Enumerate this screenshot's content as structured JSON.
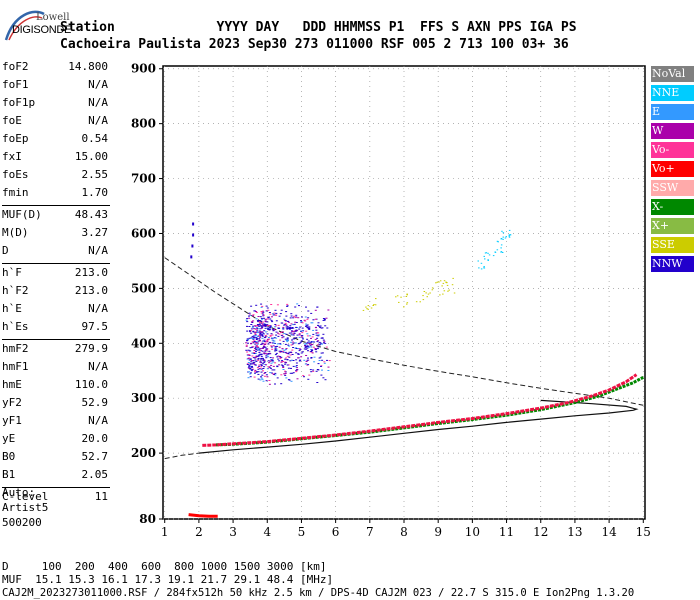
{
  "logo": {
    "top": "Lowell",
    "bottom": "DIGISONDE"
  },
  "header": {
    "line1": "Station             YYYY DAY   DDD HHMMSS P1  FFS S AXN PPS IGA PS",
    "line2": "Cachoeira Paulista 2023 Sep30 273 011000 RSF 005 2 713 100 03+ 36"
  },
  "params": [
    {
      "k": "foF2",
      "v": "14.800"
    },
    {
      "k": "foF1",
      "v": "N/A"
    },
    {
      "k": "foF1p",
      "v": "N/A"
    },
    {
      "k": "foE",
      "v": "N/A"
    },
    {
      "k": "foEp",
      "v": "0.54"
    },
    {
      "k": "fxI",
      "v": "15.00"
    },
    {
      "k": "foEs",
      "v": "2.55"
    },
    {
      "k": "fmin",
      "v": "1.70"
    },
    {
      "k": "MUF(D)",
      "v": "48.43"
    },
    {
      "k": "M(D)",
      "v": "3.27"
    },
    {
      "k": "D",
      "v": "N/A"
    },
    {
      "k": "h`F",
      "v": "213.0"
    },
    {
      "k": "h`F2",
      "v": "213.0"
    },
    {
      "k": "h`E",
      "v": "N/A"
    },
    {
      "k": "h`Es",
      "v": "97.5"
    },
    {
      "k": "hmF2",
      "v": "279.9"
    },
    {
      "k": "hmF1",
      "v": "N/A"
    },
    {
      "k": "hmE",
      "v": "110.0"
    },
    {
      "k": "yF2",
      "v": "52.9"
    },
    {
      "k": "yF1",
      "v": "N/A"
    },
    {
      "k": "yE",
      "v": "20.0"
    },
    {
      "k": "B0",
      "v": "52.7"
    },
    {
      "k": "B1",
      "v": "2.05"
    },
    {
      "k": "C-level",
      "v": "11"
    }
  ],
  "auto": {
    "line1": "Auto:",
    "line2": "Artist5",
    "line3": "500200"
  },
  "legend": [
    {
      "label": "NoVal",
      "color": "#808080"
    },
    {
      "label": "NNE",
      "color": "#00ccff"
    },
    {
      "label": "E",
      "color": "#3399ff"
    },
    {
      "label": "W",
      "color": "#aa00aa"
    },
    {
      "label": "Vo-",
      "color": "#ff3399"
    },
    {
      "label": "Vo+",
      "color": "#ff0000"
    },
    {
      "label": "SSW",
      "color": "#ffaaaa"
    },
    {
      "label": "X-",
      "color": "#008800"
    },
    {
      "label": "X+",
      "color": "#88bb44"
    },
    {
      "label": "SSE",
      "color": "#cccc00"
    },
    {
      "label": "NNW",
      "color": "#2200cc"
    }
  ],
  "footer": {
    "line1": "D     100  200  400  600  800 1000 1500 3000 [km]",
    "line2": "MUF  15.1 15.3 16.1 17.3 19.1 21.7 29.1 48.4 [MHz]",
    "line3": "CAJ2M_2023273011000.RSF / 284fx512h 50 kHz 2.5 km / DPS-4D CAJ2M 023 / 22.7 S 315.0 E Ion2Png 1.3.20"
  },
  "chart_data": {
    "type": "scatter",
    "xlabel": "",
    "ylabel": "",
    "xlim": [
      0.95,
      15.05
    ],
    "ylim": [
      80,
      905
    ],
    "xticks": [
      1,
      2,
      3,
      4,
      5,
      6,
      7,
      8,
      9,
      10,
      11,
      12,
      13,
      14,
      15
    ],
    "yticks": [
      80,
      200,
      300,
      400,
      500,
      600,
      700,
      800,
      900
    ],
    "profile_curve": [
      [
        2.0,
        200
      ],
      [
        3,
        206
      ],
      [
        4,
        211
      ],
      [
        5,
        216
      ],
      [
        6,
        222
      ],
      [
        7,
        229
      ],
      [
        8,
        236
      ],
      [
        9,
        243
      ],
      [
        10,
        249
      ],
      [
        11,
        256
      ],
      [
        12,
        262
      ],
      [
        13,
        268
      ],
      [
        14,
        273
      ],
      [
        14.7,
        278
      ],
      [
        14.8,
        280
      ],
      [
        14.5,
        285
      ],
      [
        13.5,
        290
      ],
      [
        12,
        296
      ]
    ],
    "model_curve": [
      [
        1.0,
        190
      ],
      [
        1.5,
        196
      ],
      [
        2.0,
        200
      ]
    ],
    "muf_curve": [
      [
        1.0,
        556
      ],
      [
        2.5,
        492
      ],
      [
        4,
        432
      ],
      [
        5,
        404
      ],
      [
        6,
        385
      ],
      [
        7,
        372
      ],
      [
        8,
        360
      ],
      [
        9,
        349
      ],
      [
        10,
        339
      ],
      [
        11,
        328
      ],
      [
        12,
        318
      ],
      [
        13,
        309
      ],
      [
        14,
        300
      ],
      [
        15,
        287
      ]
    ],
    "trace_vo": [
      [
        2.1,
        214
      ],
      [
        2.5,
        215
      ],
      [
        3,
        217
      ],
      [
        4,
        221
      ],
      [
        5,
        227
      ],
      [
        6,
        233
      ],
      [
        7,
        240
      ],
      [
        8,
        248
      ],
      [
        9,
        256
      ],
      [
        10,
        263
      ],
      [
        11,
        272
      ],
      [
        12,
        282
      ],
      [
        12.8,
        292
      ],
      [
        13.5,
        304
      ],
      [
        14,
        315
      ],
      [
        14.5,
        330
      ],
      [
        14.8,
        343
      ]
    ],
    "trace_x": [
      [
        2.5,
        215
      ],
      [
        3,
        216
      ],
      [
        4,
        220
      ],
      [
        5,
        226
      ],
      [
        6,
        232
      ],
      [
        7,
        238
      ],
      [
        8,
        246
      ],
      [
        9,
        254
      ],
      [
        10,
        261
      ],
      [
        11,
        269
      ],
      [
        12,
        279
      ],
      [
        13,
        292
      ],
      [
        13.7,
        304
      ],
      [
        14.2,
        316
      ],
      [
        14.7,
        328
      ],
      [
        15,
        338
      ]
    ],
    "es_trace": [
      [
        1.7,
        88
      ],
      [
        2.0,
        86
      ],
      [
        2.3,
        85
      ],
      [
        2.55,
        85
      ]
    ],
    "spread_f_cluster": {
      "x_range": [
        2.9,
        5.9
      ],
      "y_range": [
        330,
        490
      ],
      "color": "#2200cc"
    },
    "spread_nne": [
      [
        10.3,
        545
      ],
      [
        10.5,
        560
      ],
      [
        10.7,
        575
      ],
      [
        10.9,
        590
      ],
      [
        11.0,
        598
      ]
    ],
    "spread_sse": [
      [
        7,
        470
      ],
      [
        8,
        480
      ],
      [
        8.6,
        490
      ],
      [
        9,
        500
      ],
      [
        9.2,
        505
      ]
    ],
    "vertical_nnw": [
      [
        1.75,
        560
      ],
      [
        1.8,
        600
      ],
      [
        1.8,
        620
      ],
      [
        1.78,
        580
      ]
    ]
  }
}
